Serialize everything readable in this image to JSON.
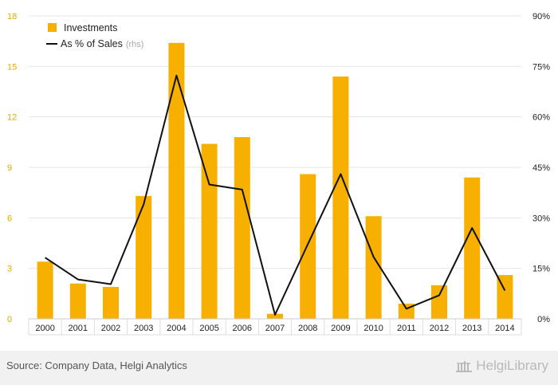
{
  "colors": {
    "bar": "#f7b000",
    "line": "#111111",
    "left_axis_text": "#e8a900",
    "axis_text": "#222222",
    "grid": "#e6e6e6",
    "muted": "#aaaaaa"
  },
  "chart_data": {
    "type": "bar",
    "categories": [
      "2000",
      "2001",
      "2002",
      "2003",
      "2004",
      "2005",
      "2006",
      "2007",
      "2008",
      "2009",
      "2010",
      "2011",
      "2012",
      "2013",
      "2014"
    ],
    "series": [
      {
        "name": "Investments",
        "type": "bar",
        "axis": "left",
        "values": [
          3.4,
          2.1,
          1.9,
          7.3,
          16.4,
          10.4,
          10.8,
          0.3,
          8.6,
          14.4,
          6.1,
          0.9,
          2.0,
          8.4,
          2.6
        ]
      },
      {
        "name": "As % of Sales",
        "name_suffix": "(rhs)",
        "type": "line",
        "axis": "right",
        "values": [
          18.2,
          11.7,
          10.3,
          34.0,
          72.3,
          39.9,
          38.4,
          1.2,
          22.2,
          43.0,
          18.4,
          3.0,
          7.0,
          27.0,
          8.4
        ]
      }
    ],
    "y_left": {
      "ylim": [
        0,
        18
      ],
      "ticks": [
        "0",
        "3",
        "6",
        "9",
        "12",
        "15",
        "18"
      ]
    },
    "y_right": {
      "ylim": [
        0,
        90
      ],
      "ticks": [
        "0%",
        "15%",
        "30%",
        "45%",
        "60%",
        "75%",
        "90%"
      ]
    },
    "grid": true,
    "legend_position": "top-left"
  },
  "footer": {
    "source": "Source: Company Data, Helgi Analytics",
    "logo_text": "HelgiLibrary",
    "logo_icon": "building-icon"
  }
}
